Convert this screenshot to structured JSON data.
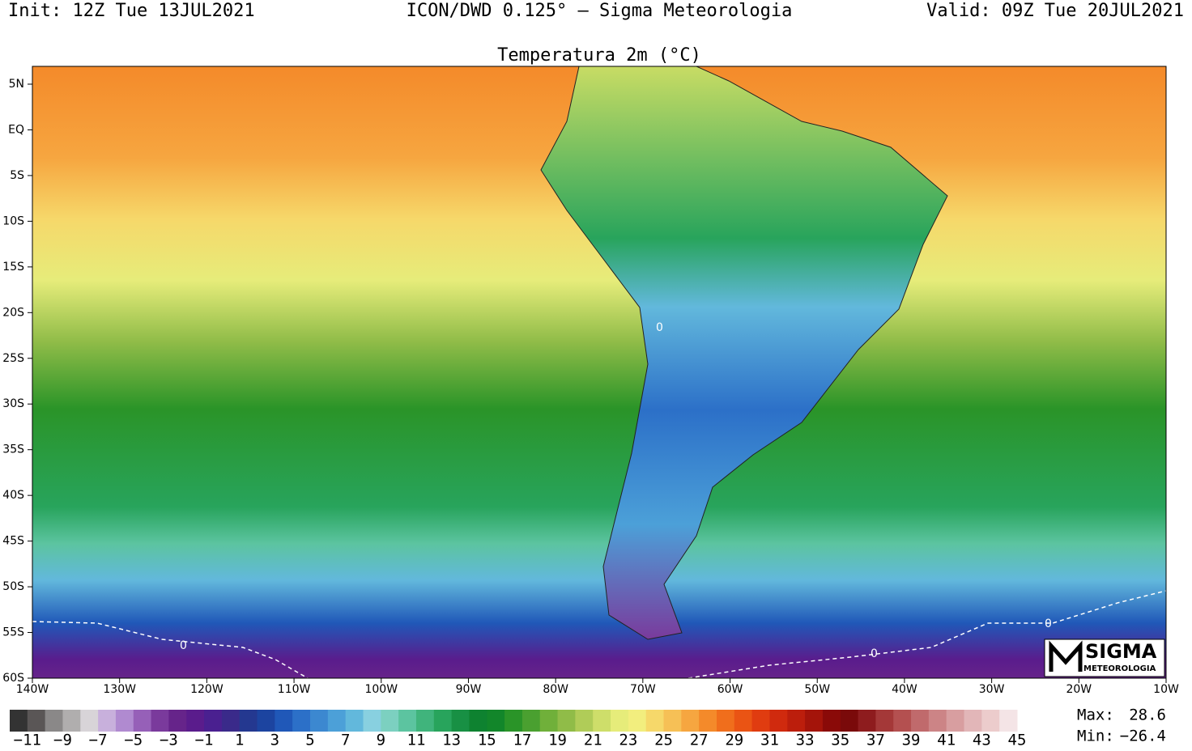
{
  "header": {
    "init": "Init: 12Z Tue 13JUL2021",
    "model": "ICON/DWD 0.125° – Sigma Meteorologia",
    "valid": "Valid: 09Z Tue 20JUL2021"
  },
  "title": "Temperatura 2m (°C)",
  "lat_labels": [
    "5N",
    "EQ",
    "5S",
    "10S",
    "15S",
    "20S",
    "25S",
    "30S",
    "35S",
    "40S",
    "45S",
    "50S",
    "55S",
    "60S"
  ],
  "lon_labels": [
    "140W",
    "130W",
    "120W",
    "110W",
    "100W",
    "90W",
    "80W",
    "70W",
    "60W",
    "50W",
    "40W",
    "30W",
    "20W",
    "10W"
  ],
  "contour_labels": [
    "0",
    "0",
    "0",
    "0"
  ],
  "colorbar": {
    "colors": [
      "#333333",
      "#5a5656",
      "#8a8888",
      "#b0aeae",
      "#d8d4d8",
      "#c8b0dc",
      "#b08ad0",
      "#9660b8",
      "#7a3a9c",
      "#66248a",
      "#5a1c8c",
      "#4a2090",
      "#3a2a8a",
      "#243890",
      "#1c44a0",
      "#2058b8",
      "#2c70c8",
      "#3c88d0",
      "#4ca0d8",
      "#62b8dc",
      "#88d0e0",
      "#7cd0c0",
      "#5cc4a0",
      "#40b47c",
      "#28a45c",
      "#189044",
      "#0e8230",
      "#12862a",
      "#2a9428",
      "#4aa030",
      "#70b03a",
      "#90bc48",
      "#b0cc58",
      "#cede6a",
      "#e6ec7a",
      "#f2ee7e",
      "#f6d86a",
      "#f6c056",
      "#f6a640",
      "#f48a2a",
      "#f06e1c",
      "#ea5414",
      "#e03c10",
      "#d02a0e",
      "#bc1e0c",
      "#a4140a",
      "#8a0a08",
      "#7a0a0a",
      "#8e1c1e",
      "#a43838",
      "#b45050",
      "#c06a6c",
      "#cc8486",
      "#d89ea0",
      "#e2b6b8",
      "#eccccc",
      "#f4e4e6"
    ],
    "labels": [
      "−11",
      "−9",
      "−7",
      "−5",
      "−3",
      "−1",
      "1",
      "3",
      "5",
      "7",
      "9",
      "11",
      "13",
      "15",
      "17",
      "19",
      "21",
      "23",
      "25",
      "27",
      "29",
      "31",
      "33",
      "35",
      "37",
      "39",
      "41",
      "43",
      "45"
    ]
  },
  "stats": {
    "max_label": "Max:",
    "max": "28.6",
    "min_label": "Min:",
    "min": "−26.4"
  },
  "logo": {
    "name": "SIGMA",
    "sub": "METEOROLOGIA"
  }
}
